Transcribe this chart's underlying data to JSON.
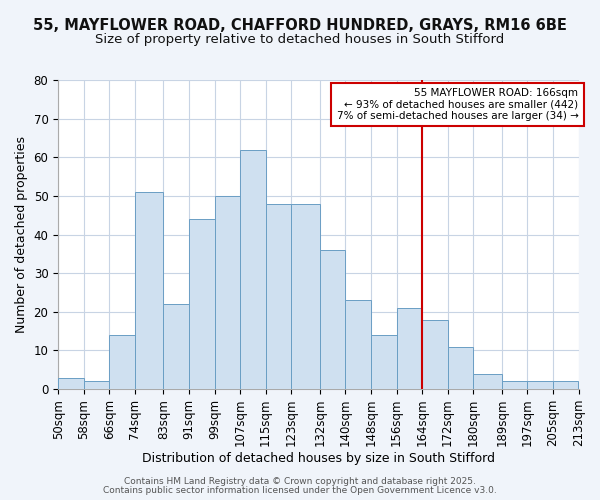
{
  "title": "55, MAYFLOWER ROAD, CHAFFORD HUNDRED, GRAYS, RM16 6BE",
  "subtitle": "Size of property relative to detached houses in South Stifford",
  "xlabel": "Distribution of detached houses by size in South Stifford",
  "ylabel": "Number of detached properties",
  "bin_labels": [
    "50sqm",
    "58sqm",
    "66sqm",
    "74sqm",
    "83sqm",
    "91sqm",
    "99sqm",
    "107sqm",
    "115sqm",
    "123sqm",
    "132sqm",
    "140sqm",
    "148sqm",
    "156sqm",
    "164sqm",
    "172sqm",
    "180sqm",
    "189sqm",
    "197sqm",
    "205sqm",
    "213sqm"
  ],
  "bin_edges": [
    50,
    58,
    66,
    74,
    83,
    91,
    99,
    107,
    115,
    123,
    132,
    140,
    148,
    156,
    164,
    172,
    180,
    189,
    197,
    205,
    213
  ],
  "counts": [
    3,
    2,
    14,
    51,
    22,
    44,
    50,
    62,
    48,
    48,
    36,
    23,
    14,
    21,
    18,
    11,
    4,
    2,
    2,
    2
  ],
  "bar_facecolor": "#cfe0f0",
  "bar_edgecolor": "#6a9ec4",
  "grid_color": "#c8d4e4",
  "background_color": "#ffffff",
  "fig_background_color": "#f0f4fa",
  "red_line_x": 164,
  "annotation_title": "55 MAYFLOWER ROAD: 166sqm",
  "annotation_line1": "← 93% of detached houses are smaller (442)",
  "annotation_line2": "7% of semi-detached houses are larger (34) →",
  "annotation_box_edgecolor": "#cc0000",
  "red_line_color": "#cc0000",
  "ylim": [
    0,
    80
  ],
  "yticks": [
    0,
    10,
    20,
    30,
    40,
    50,
    60,
    70,
    80
  ],
  "footer1": "Contains HM Land Registry data © Crown copyright and database right 2025.",
  "footer2": "Contains public sector information licensed under the Open Government Licence v3.0.",
  "title_fontsize": 10.5,
  "subtitle_fontsize": 9.5,
  "axis_label_fontsize": 9,
  "tick_fontsize": 8.5,
  "footer_fontsize": 6.5
}
